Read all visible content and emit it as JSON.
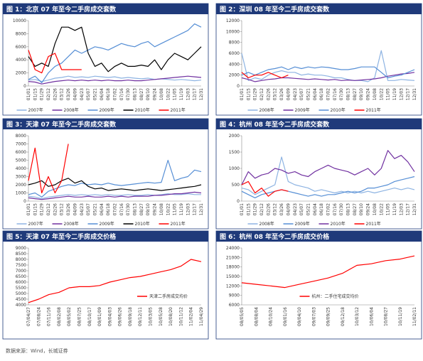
{
  "chart_data": [
    {
      "type": "line",
      "title": "图 1：北京 07 年至今二手房成交套数",
      "legend": "bottom",
      "categories": [
        "01/01",
        "01/15",
        "01/29",
        "02/12",
        "02/26",
        "03/12",
        "03/26",
        "04/09",
        "04/23",
        "05/07",
        "05/21",
        "06/04",
        "06/18",
        "07/02",
        "07/16",
        "07/30",
        "08/13",
        "08/27",
        "09/10",
        "09/24",
        "10/08",
        "10/22",
        "11/05",
        "11/19",
        "12/03",
        "12/17",
        "12/31"
      ],
      "ylim": [
        0,
        10000
      ],
      "yticks": [
        0,
        2000,
        4000,
        6000,
        8000,
        10000
      ],
      "series": [
        {
          "name": "2007年",
          "color": "#8db3e2",
          "values": [
            900,
            1000,
            700,
            900,
            1200,
            1300,
            1500,
            1300,
            1400,
            1300,
            1500,
            1400,
            1300,
            1400,
            1200,
            1300,
            1200,
            1100,
            1200,
            1000,
            1100,
            1000,
            900,
            1000,
            900,
            800,
            900
          ]
        },
        {
          "name": "2008年",
          "color": "#7030a0",
          "values": [
            700,
            600,
            300,
            500,
            700,
            800,
            900,
            800,
            900,
            800,
            900,
            800,
            900,
            800,
            800,
            900,
            800,
            800,
            900,
            1000,
            1100,
            1200,
            1300,
            1400,
            1500,
            1400,
            1300
          ]
        },
        {
          "name": "2009年",
          "color": "#558ed5",
          "values": [
            1000,
            1500,
            500,
            2000,
            3000,
            3500,
            4500,
            5500,
            5000,
            5500,
            6000,
            5800,
            5500,
            6000,
            6500,
            6200,
            6000,
            6500,
            6800,
            6000,
            6500,
            7000,
            7500,
            8000,
            8500,
            9500,
            9000
          ]
        },
        {
          "name": "2010年",
          "color": "#000000",
          "values": [
            4500,
            3000,
            3500,
            3000,
            6500,
            9000,
            9000,
            8500,
            9000,
            5000,
            3000,
            3500,
            2200,
            3000,
            3500,
            3000,
            3000,
            3200,
            3000,
            4000,
            2500,
            4000,
            5000,
            4500,
            4000,
            5000,
            6000
          ]
        },
        {
          "name": "2011年",
          "color": "#ff0000",
          "values": [
            5500,
            2500,
            2000,
            4500,
            5000,
            2500,
            2500,
            2500,
            2500,
            null,
            null,
            null,
            null,
            null,
            null,
            null,
            null,
            null,
            null,
            null,
            null,
            null,
            null,
            null,
            null,
            null,
            null
          ]
        }
      ]
    },
    {
      "type": "line",
      "title": "图 2：深圳 08 年至今二手房成交套数",
      "legend": "bottom",
      "categories": [
        "01/01",
        "01/15",
        "01/29",
        "02/12",
        "02/26",
        "03/12",
        "03/26",
        "04/09",
        "04/23",
        "05/07",
        "05/21",
        "06/04",
        "06/18",
        "07/02",
        "07/16",
        "07/30",
        "08/13",
        "08/27",
        "09/10",
        "09/24",
        "10/08",
        "10/22",
        "11/05",
        "11/19",
        "12/03",
        "12/17",
        "12/31"
      ],
      "ylim": [
        0,
        12000
      ],
      "yticks": [
        0,
        2000,
        4000,
        6000,
        8000,
        10000,
        12000
      ],
      "series": [
        {
          "name": "2008年",
          "color": "#8db3e2",
          "values": [
            6000,
            1000,
            1500,
            1200,
            2000,
            2500,
            2800,
            2500,
            2500,
            2000,
            2200,
            2000,
            2000,
            1800,
            1500,
            1500,
            1200,
            1000,
            1000,
            800,
            1500,
            6500,
            1000,
            1000,
            1200,
            1100,
            1000
          ]
        },
        {
          "name": "2009年",
          "color": "#7030a0",
          "values": [
            1500,
            1200,
            800,
            1000,
            1200,
            1300,
            1500,
            1500,
            1400,
            1300,
            1200,
            1300,
            1200,
            1100,
            1200,
            1000,
            1100,
            1000,
            1100,
            1200,
            1300,
            1500,
            1800,
            2000,
            2200,
            2300,
            2500
          ]
        },
        {
          "name": "2010年",
          "color": "#558ed5",
          "values": [
            2000,
            2500,
            2000,
            2500,
            3000,
            3200,
            3500,
            3000,
            3500,
            3200,
            3500,
            3300,
            3500,
            3400,
            3200,
            3000,
            3000,
            3200,
            3500,
            3500,
            3500,
            2500,
            1500,
            1800,
            2000,
            2500,
            3000
          ]
        },
        {
          "name": "2011年",
          "color": "#ff0000",
          "values": [
            2500,
            1500,
            2000,
            2000,
            2500,
            2000,
            1500,
            2000,
            null,
            null,
            null,
            null,
            null,
            null,
            null,
            null,
            null,
            null,
            null,
            null,
            null,
            null,
            null,
            null,
            null,
            null,
            null
          ]
        }
      ]
    },
    {
      "type": "line",
      "title": "图 3：天津 07 年至今二手房成交套数",
      "legend": "bottom",
      "categories": [
        "01/01",
        "01/15",
        "01/29",
        "02/12",
        "02/26",
        "03/12",
        "03/26",
        "04/09",
        "04/23",
        "05/07",
        "05/21",
        "06/04",
        "06/18",
        "07/02",
        "07/16",
        "07/30",
        "08/13",
        "08/27",
        "09/10",
        "09/24",
        "10/08",
        "10/22",
        "11/05",
        "11/19",
        "12/03",
        "12/17",
        "12/31"
      ],
      "ylim": [
        0,
        8000
      ],
      "yticks": [
        0,
        1000,
        2000,
        3000,
        4000,
        5000,
        6000,
        7000,
        8000
      ],
      "series": [
        {
          "name": "2007年",
          "color": "#8db3e2",
          "values": [
            600,
            500,
            300,
            500,
            600,
            700,
            800,
            700,
            800,
            700,
            800,
            700,
            800,
            700,
            700,
            800,
            700,
            700,
            800,
            700,
            800,
            900,
            800,
            800,
            900,
            800,
            800
          ]
        },
        {
          "name": "2008年",
          "color": "#7030a0",
          "values": [
            400,
            300,
            200,
            300,
            400,
            500,
            600,
            500,
            500,
            600,
            500,
            500,
            600,
            500,
            600,
            500,
            600,
            600,
            600,
            700,
            700,
            800,
            900,
            900,
            1000,
            1100,
            1000
          ]
        },
        {
          "name": "2009年",
          "color": "#558ed5",
          "values": [
            800,
            1000,
            500,
            1200,
            1500,
            1800,
            2000,
            1900,
            2200,
            2000,
            2100,
            2000,
            2200,
            2000,
            1900,
            2000,
            2100,
            2200,
            2300,
            2200,
            2300,
            5000,
            2500,
            2800,
            3000,
            3800,
            3600
          ]
        },
        {
          "name": "2010年",
          "color": "#000000",
          "values": [
            2000,
            2200,
            2500,
            1800,
            2000,
            2500,
            2800,
            2200,
            2500,
            1800,
            1500,
            1600,
            1300,
            1400,
            1500,
            1400,
            1300,
            1400,
            1500,
            1400,
            1300,
            1400,
            1500,
            1600,
            1700,
            1800,
            2000
          ]
        },
        {
          "name": "2011年",
          "color": "#ff0000",
          "values": [
            2500,
            6500,
            1000,
            3000,
            1000,
            2500,
            7000,
            null,
            null,
            null,
            null,
            null,
            null,
            null,
            null,
            null,
            null,
            null,
            null,
            null,
            null,
            null,
            null,
            null,
            null,
            null,
            null
          ]
        }
      ]
    },
    {
      "type": "line",
      "title": "图 4：杭州 08 年至今二手房成交套数",
      "legend": "bottom",
      "categories": [
        "01/01",
        "01/15",
        "01/29",
        "02/12",
        "02/26",
        "03/12",
        "03/26",
        "04/09",
        "04/23",
        "05/07",
        "05/21",
        "06/04",
        "06/18",
        "07/02",
        "07/16",
        "07/30",
        "08/13",
        "08/27",
        "09/10",
        "09/24",
        "10/08",
        "10/22",
        "11/05",
        "11/19",
        "12/03",
        "12/17",
        "12/31"
      ],
      "ylim": [
        0,
        2000
      ],
      "yticks": [
        0,
        500,
        1000,
        1500,
        2000
      ],
      "series": [
        {
          "name": "2008年",
          "color": "#8db3e2",
          "values": [
            400,
            350,
            200,
            300,
            400,
            500,
            1350,
            600,
            500,
            450,
            400,
            300,
            350,
            300,
            250,
            300,
            250,
            300,
            250,
            300,
            250,
            300,
            350,
            400,
            350,
            400,
            350
          ]
        },
        {
          "name": "2009年",
          "color": "#558ed5",
          "values": [
            300,
            200,
            100,
            200,
            250,
            300,
            350,
            300,
            250,
            200,
            150,
            200,
            150,
            200,
            200,
            250,
            300,
            250,
            300,
            400,
            400,
            450,
            500,
            600,
            650,
            700,
            750
          ]
        },
        {
          "name": "2010年",
          "color": "#7030a0",
          "values": [
            500,
            900,
            700,
            800,
            850,
            1000,
            950,
            850,
            900,
            800,
            750,
            900,
            1000,
            1100,
            1000,
            950,
            900,
            800,
            900,
            1000,
            800,
            1000,
            1550,
            1300,
            1400,
            1200,
            900
          ]
        },
        {
          "name": "2011年",
          "color": "#ff0000",
          "values": [
            500,
            600,
            250,
            400,
            150,
            300,
            350,
            300,
            null,
            null,
            null,
            null,
            null,
            null,
            null,
            null,
            null,
            null,
            null,
            null,
            null,
            null,
            null,
            null,
            null,
            null,
            null
          ]
        }
      ]
    },
    {
      "type": "line",
      "title": "图 5：天津 07 年至今二手房成交价格",
      "legend": "lower right",
      "categories": [
        "07/04/27",
        "07/08/24",
        "07/11/16",
        "08/02/08",
        "08/05/02",
        "08/07/25",
        "08/10/17",
        "09/01/09",
        "09/04/03",
        "09/06/26",
        "09/09/18",
        "09/12/11",
        "10/03/05",
        "10/05/28",
        "10/08/20",
        "10/11/12",
        "11/02/04",
        "11/04/29"
      ],
      "ylim": [
        4000,
        9000
      ],
      "yticks": [
        4000,
        4500,
        5000,
        5500,
        6000,
        6500,
        7000,
        7500,
        8000,
        8500,
        9000
      ],
      "series": [
        {
          "name": "天津二手房成交均价",
          "color": "#ff0000",
          "values": [
            4200,
            4500,
            4900,
            5100,
            5500,
            5600,
            5600,
            5700,
            6000,
            6200,
            6400,
            6500,
            6700,
            6900,
            7100,
            7400,
            8000,
            7800
          ]
        }
      ]
    },
    {
      "type": "line",
      "title": "图 6：杭州 08 年至今二手房成交价格",
      "legend": "lower center",
      "categories": [
        "08/05/05",
        "08/08/04",
        "08/10/24",
        "09/01/16",
        "09/04/10",
        "09/07/03",
        "09/09/25",
        "09/12/18",
        "10/03/12",
        "10/06/04",
        "10/08/27",
        "10/11/19",
        "11/02/11"
      ],
      "ylim": [
        6000,
        24000
      ],
      "yticks": [
        6000,
        9000,
        12000,
        15000,
        18000,
        21000,
        24000
      ],
      "series": [
        {
          "name": "杭州：二手住宅成交均价",
          "color": "#ff0000",
          "values": [
            13000,
            12500,
            12000,
            11500,
            12500,
            13500,
            14500,
            16000,
            18500,
            19000,
            20000,
            20500,
            21500
          ]
        }
      ]
    }
  ],
  "source": "数据来源：Wind，长城证券"
}
